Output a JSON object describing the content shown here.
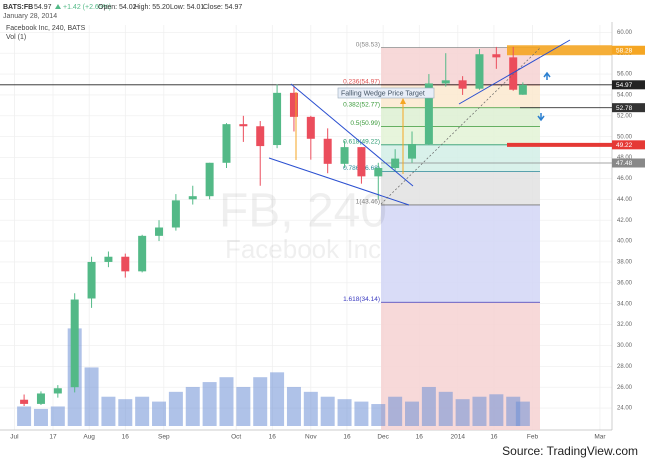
{
  "header": {
    "symbol": "BATS:FB",
    "last": "54.97",
    "change": "+1.42 (+2.65%)",
    "open": "Open: 54.02",
    "high": "High: 55.20",
    "low": "Low: 54.01",
    "close": "Close: 54.97",
    "date": "January 28, 2014"
  },
  "source": "Source: TradingView.com",
  "chart_data": {
    "type": "candlestick",
    "subtitle": "Facebook Inc, 240, BATS",
    "watermark": [
      "FB, 240",
      "Facebook Inc"
    ],
    "up_color": "#53b987",
    "down_color": "#eb4d5c",
    "x": [
      "2013-07-05",
      "2013-07-12",
      "2013-07-19",
      "2013-07-26",
      "2013-08-02",
      "2013-08-09",
      "2013-08-16",
      "2013-08-23",
      "2013-08-30",
      "2013-09-06",
      "2013-09-13",
      "2013-09-20",
      "2013-09-27",
      "2013-10-04",
      "2013-10-11",
      "2013-10-18",
      "2013-10-25",
      "2013-11-01",
      "2013-11-08",
      "2013-11-15",
      "2013-11-22",
      "2013-11-29",
      "2013-12-06",
      "2013-12-13",
      "2013-12-20",
      "2013-12-27",
      "2014-01-03",
      "2014-01-10",
      "2014-01-17",
      "2014-01-24",
      "2014-01-28"
    ],
    "open": [
      24.8,
      24.4,
      25.4,
      26.0,
      34.5,
      38.0,
      38.5,
      37.1,
      40.5,
      41.3,
      44.0,
      44.3,
      47.5,
      51.2,
      51.0,
      49.2,
      54.2,
      51.9,
      49.8,
      47.4,
      49.0,
      46.2,
      47.0,
      47.9,
      49.3,
      55.1,
      55.4,
      54.6,
      57.9,
      57.6,
      54.02
    ],
    "high": [
      25.3,
      25.6,
      26.2,
      35.0,
      38.5,
      39.0,
      38.8,
      40.6,
      42.0,
      44.5,
      45.3,
      47.5,
      51.3,
      52.0,
      51.5,
      55.0,
      54.8,
      52.0,
      50.8,
      49.6,
      49.0,
      47.5,
      48.8,
      50.5,
      56.0,
      58.0,
      55.8,
      58.4,
      58.6,
      58.6,
      55.2
    ],
    "low": [
      24.2,
      24.3,
      25.0,
      25.5,
      33.6,
      37.5,
      36.5,
      37.0,
      40.0,
      41.0,
      43.5,
      44.0,
      47.0,
      49.5,
      45.3,
      48.9,
      50.5,
      47.8,
      46.5,
      47.0,
      45.5,
      44.0,
      46.7,
      47.5,
      49.2,
      54.8,
      54.0,
      54.5,
      56.5,
      54.4,
      54.01
    ],
    "close": [
      24.4,
      25.4,
      25.9,
      34.4,
      38.0,
      38.5,
      37.1,
      40.5,
      41.3,
      43.9,
      44.3,
      47.5,
      51.2,
      51.0,
      49.1,
      54.2,
      51.9,
      49.8,
      47.4,
      49.0,
      46.2,
      47.0,
      47.9,
      49.3,
      55.1,
      55.4,
      54.6,
      57.9,
      57.6,
      54.5,
      54.97
    ],
    "volume": {
      "name": "Vol (1)",
      "color": "#6d8fd6",
      "ylim": [
        0,
        250
      ],
      "values": [
        40,
        35,
        40,
        200,
        120,
        60,
        55,
        60,
        50,
        70,
        80,
        90,
        100,
        80,
        100,
        110,
        80,
        70,
        60,
        55,
        50,
        45,
        60,
        50,
        80,
        70,
        55,
        60,
        65,
        60,
        50
      ]
    },
    "xlim": [
      "2013-06-25",
      "2014-03-06"
    ],
    "xticks": [
      {
        "value": "2013-07-01",
        "label": "Jul"
      },
      {
        "value": "2013-07-17",
        "label": "17"
      },
      {
        "value": "2013-08-01",
        "label": "Aug"
      },
      {
        "value": "2013-08-16",
        "label": "16"
      },
      {
        "value": "2013-09-01",
        "label": "Sep"
      },
      {
        "value": "2013-10-01",
        "label": "Oct"
      },
      {
        "value": "2013-10-16",
        "label": "16"
      },
      {
        "value": "2013-11-01",
        "label": "Nov"
      },
      {
        "value": "2013-11-16",
        "label": "16"
      },
      {
        "value": "2013-12-01",
        "label": "Dec"
      },
      {
        "value": "2013-12-16",
        "label": "16"
      },
      {
        "value": "2014-01-01",
        "label": "2014"
      },
      {
        "value": "2014-01-16",
        "label": "16"
      },
      {
        "value": "2014-02-01",
        "label": "Feb"
      },
      {
        "value": "2014-03-01",
        "label": "Mar"
      }
    ],
    "ylim": [
      21.9,
      60.7
    ],
    "yticks": [
      {
        "value": 24,
        "label": "24.00"
      },
      {
        "value": 26,
        "label": "26.00"
      },
      {
        "value": 28,
        "label": "28.00"
      },
      {
        "value": 30,
        "label": "30.00"
      },
      {
        "value": 32,
        "label": "32.00"
      },
      {
        "value": 34,
        "label": "34.00"
      },
      {
        "value": 36,
        "label": "36.00"
      },
      {
        "value": 38,
        "label": "38.00"
      },
      {
        "value": 40,
        "label": "40.00"
      },
      {
        "value": 42,
        "label": "42.00"
      },
      {
        "value": 44,
        "label": "44.00"
      },
      {
        "value": 46,
        "label": "46.00"
      },
      {
        "value": 48,
        "label": "48.00"
      },
      {
        "value": 50,
        "label": "50.00"
      },
      {
        "value": 52,
        "label": "52.00"
      },
      {
        "value": 54,
        "label": "54.00"
      },
      {
        "value": 56,
        "label": "56.00"
      },
      {
        "value": 58,
        "label": "58.00"
      },
      {
        "value": 60,
        "label": "60.00"
      }
    ],
    "grid": true,
    "fibonacci": {
      "levels": [
        {
          "value": 58.53,
          "label": "0(58.53)"
        },
        {
          "value": 54.97,
          "label": "0.236(54.97)"
        },
        {
          "value": 52.77,
          "label": "0.382(52.77)"
        },
        {
          "value": 50.99,
          "label": "0.5(50.99)"
        },
        {
          "value": 49.22,
          "label": "0.618(49.22)"
        },
        {
          "value": 46.68,
          "label": "0.786(46.68)"
        },
        {
          "value": 43.46,
          "label": "1(43.46)"
        },
        {
          "value": 34.14,
          "label": "1.618(34.14)"
        }
      ],
      "line_colors": [
        "#888888",
        "#e05050",
        "#3a9a3a",
        "#3a9a3a",
        "#2a9a70",
        "#2a8a9a",
        "#777777",
        "#3a3ac0"
      ],
      "zone_colors": [
        "#f6d2d2",
        "#fbe9cf",
        "#ddf0d2",
        "#e3f3d6",
        "#d2eee6",
        "#e2e2e2",
        "#d2d6f6",
        "#f6d2d2"
      ]
    },
    "annotation": "Falling Wedge Price Target",
    "price_tags": [
      {
        "value": 58.28,
        "color": "#f5a623"
      },
      {
        "value": 54.97,
        "color": "#222222"
      },
      {
        "value": 52.78,
        "color": "#333333"
      },
      {
        "value": 49.22,
        "color": "#e53935"
      },
      {
        "value": 47.48,
        "color": "#888888"
      }
    ]
  }
}
